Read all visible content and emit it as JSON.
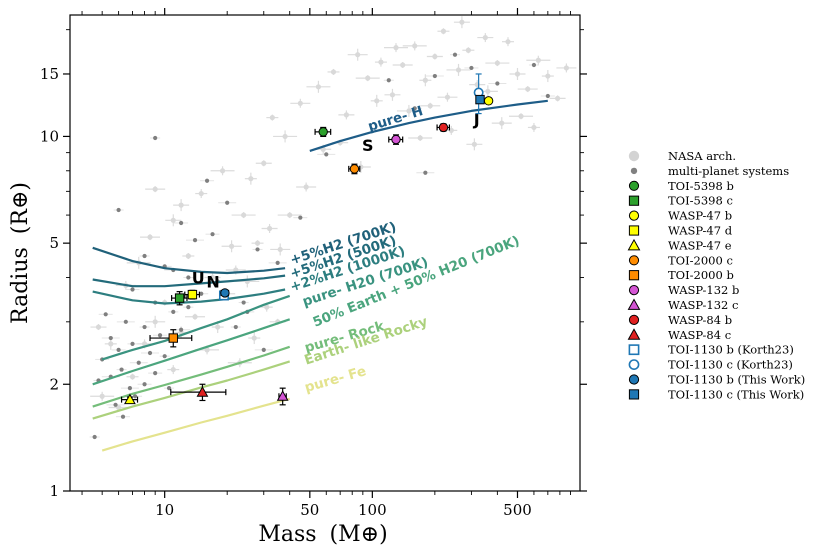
{
  "chart_data": {
    "type": "scatter",
    "xlabel": "Mass",
    "xlabel_unit": "(M⊕)",
    "ylabel": "Radius",
    "ylabel_unit": "(R⊕)",
    "xscale": "log",
    "yscale": "log",
    "xlim": [
      3.5,
      1000
    ],
    "ylim": [
      1,
      22
    ],
    "x_ticks": [
      {
        "value": 10,
        "label": "10"
      },
      {
        "value": 50,
        "label": "50"
      },
      {
        "value": 100,
        "label": "100"
      },
      {
        "value": 500,
        "label": "500"
      }
    ],
    "y_ticks": [
      {
        "value": 1,
        "label": "1"
      },
      {
        "value": 2,
        "label": "2"
      },
      {
        "value": 5,
        "label": "5"
      },
      {
        "value": 10,
        "label": "10"
      },
      {
        "value": 15,
        "label": "15"
      }
    ],
    "solar_system": [
      {
        "label": "U",
        "mass": 14.5,
        "radius": 4.0
      },
      {
        "label": "N",
        "mass": 17.1,
        "radius": 3.9
      },
      {
        "label": "S",
        "mass": 95,
        "radius": 9.45
      },
      {
        "label": "J",
        "mass": 318,
        "radius": 11.2
      }
    ],
    "composition_curves": [
      {
        "name": "+5%H2 (700K)",
        "color": "#20617a",
        "points": [
          [
            4.5,
            4.85
          ],
          [
            7,
            4.45
          ],
          [
            10,
            4.25
          ],
          [
            15,
            4.15
          ],
          [
            20,
            4.12
          ],
          [
            30,
            4.18
          ],
          [
            38,
            4.25
          ]
        ]
      },
      {
        "name": "+5%H2 (500K)",
        "color": "#236b7b",
        "points": [
          [
            4.5,
            3.95
          ],
          [
            7,
            3.78
          ],
          [
            10,
            3.78
          ],
          [
            15,
            3.85
          ],
          [
            20,
            3.9
          ],
          [
            30,
            3.98
          ],
          [
            38,
            4.05
          ]
        ]
      },
      {
        "name": "+2%H2 (1000K)",
        "color": "#2d7e80",
        "points": [
          [
            4.5,
            3.65
          ],
          [
            7,
            3.45
          ],
          [
            10,
            3.38
          ],
          [
            15,
            3.42
          ],
          [
            20,
            3.48
          ],
          [
            30,
            3.6
          ],
          [
            38,
            3.7
          ]
        ]
      },
      {
        "name": "pure- H20 (700K)",
        "color": "#3a9380",
        "points": [
          [
            5,
            2.35
          ],
          [
            7,
            2.5
          ],
          [
            10,
            2.65
          ],
          [
            15,
            2.88
          ],
          [
            20,
            3.05
          ],
          [
            30,
            3.35
          ],
          [
            40,
            3.55
          ]
        ]
      },
      {
        "name": "50% Earth + 50% H20 (700K)",
        "color": "#4ba57e",
        "points": [
          [
            4.5,
            2.0
          ],
          [
            7,
            2.18
          ],
          [
            10,
            2.33
          ],
          [
            15,
            2.52
          ],
          [
            20,
            2.66
          ],
          [
            30,
            2.88
          ],
          [
            40,
            3.05
          ]
        ]
      },
      {
        "name": "pure- Rock",
        "color": "#74bd7a",
        "points": [
          [
            4.5,
            1.73
          ],
          [
            7,
            1.88
          ],
          [
            10,
            1.99
          ],
          [
            15,
            2.13
          ],
          [
            20,
            2.24
          ],
          [
            30,
            2.41
          ],
          [
            40,
            2.55
          ]
        ]
      },
      {
        "name": "Earth- like Rocky",
        "color": "#acd17c",
        "points": [
          [
            4.5,
            1.6
          ],
          [
            7,
            1.73
          ],
          [
            10,
            1.83
          ],
          [
            15,
            1.96
          ],
          [
            20,
            2.05
          ],
          [
            30,
            2.2
          ],
          [
            40,
            2.32
          ]
        ]
      },
      {
        "name": "pure- Fe",
        "color": "#e4e38e",
        "points": [
          [
            5,
            1.3
          ],
          [
            7,
            1.38
          ],
          [
            10,
            1.46
          ],
          [
            15,
            1.56
          ],
          [
            20,
            1.63
          ],
          [
            30,
            1.74
          ],
          [
            40,
            1.82
          ]
        ]
      },
      {
        "name": "pure- H",
        "color": "#1e5d88",
        "points": [
          [
            50,
            9.1
          ],
          [
            70,
            9.7
          ],
          [
            100,
            10.3
          ],
          [
            150,
            10.9
          ],
          [
            200,
            11.3
          ],
          [
            300,
            11.8
          ],
          [
            500,
            12.3
          ],
          [
            700,
            12.6
          ]
        ]
      }
    ],
    "highlighted_planets": [
      {
        "name": "TOI-5398 b",
        "mass": 58,
        "radius": 10.3,
        "mass_err": 5,
        "radius_err": 0.3,
        "marker": "circle",
        "color": "#2ca02c",
        "filled": true
      },
      {
        "name": "TOI-5398 c",
        "mass": 11.8,
        "radius": 3.5,
        "mass_err": 1.0,
        "radius_err": 0.15,
        "marker": "square",
        "color": "#2ca02c",
        "filled": true
      },
      {
        "name": "WASP-47 b",
        "mass": 363,
        "radius": 12.6,
        "mass_err": 8,
        "radius_err": 0.2,
        "marker": "circle",
        "color": "#ffff00",
        "filled": true
      },
      {
        "name": "WASP-47 d",
        "mass": 13.6,
        "radius": 3.58,
        "mass_err": 1.1,
        "radius_err": 0.1,
        "marker": "square",
        "color": "#ffff00",
        "filled": true
      },
      {
        "name": "WASP-47 e",
        "mass": 6.8,
        "radius": 1.81,
        "mass_err": 0.6,
        "radius_err": 0.03,
        "marker": "triangle",
        "color": "#ffff00",
        "filled": true
      },
      {
        "name": "TOI-2000 c",
        "mass": 82,
        "radius": 8.1,
        "mass_err": 5,
        "radius_err": 0.25,
        "marker": "circle",
        "color": "#ff8c00",
        "filled": true
      },
      {
        "name": "TOI-2000 b",
        "mass": 11,
        "radius": 2.7,
        "mass_err": 2.5,
        "radius_err": 0.15,
        "marker": "square",
        "color": "#ff8c00",
        "filled": true
      },
      {
        "name": "WASP-132 b",
        "mass": 130,
        "radius": 9.8,
        "mass_err": 10,
        "radius_err": 0.3,
        "marker": "circle",
        "color": "#d455d4",
        "filled": true
      },
      {
        "name": "WASP-132 c",
        "mass": 37,
        "radius": 1.85,
        "mass_err": 1.5,
        "radius_err": 0.1,
        "marker": "triangle",
        "color": "#d455d4",
        "filled": true
      },
      {
        "name": "WASP-84 b",
        "mass": 220,
        "radius": 10.6,
        "mass_err": 15,
        "radius_err": 0.25,
        "marker": "circle",
        "color": "#e02020",
        "filled": true
      },
      {
        "name": "WASP-84 c",
        "mass": 15.2,
        "radius": 1.9,
        "mass_err": 4.5,
        "radius_err": 0.1,
        "marker": "triangle",
        "color": "#e02020",
        "filled": true
      },
      {
        "name": "TOI-1130 b (Korth23)",
        "mass": 19.3,
        "radius": 3.56,
        "mass_err": 0.8,
        "radius_err": 0.07,
        "marker": "square",
        "color": "#1f77b4",
        "filled": false
      },
      {
        "name": "TOI-1130 c (Korth23)",
        "mass": 325,
        "radius": 13.3,
        "mass_err": 5,
        "radius_err": 1.7,
        "marker": "circle",
        "color": "#1f77b4",
        "filled": false
      },
      {
        "name": "TOI-1130 b (This Work)",
        "mass": 19.5,
        "radius": 3.62,
        "mass_err": 0.8,
        "radius_err": 0.06,
        "marker": "circle",
        "color": "#1f77b4",
        "filled": true
      },
      {
        "name": "TOI-1130 c (This Work)",
        "mass": 330,
        "radius": 12.7,
        "mass_err": 5,
        "radius_err": 0.3,
        "marker": "square",
        "color": "#1f77b4",
        "filled": true
      }
    ],
    "multi_planet_points": [
      [
        9,
        9.9
      ],
      [
        16,
        7.5
      ],
      [
        20,
        6.5
      ],
      [
        6,
        6.2
      ],
      [
        12,
        5.7
      ],
      [
        14,
        5.1
      ],
      [
        8,
        4.6
      ],
      [
        10,
        4.3
      ],
      [
        11,
        4.2
      ],
      [
        13,
        4.0
      ],
      [
        7,
        3.7
      ],
      [
        9,
        3.4
      ],
      [
        11,
        3.2
      ],
      [
        5.2,
        3.15
      ],
      [
        6.5,
        3.0
      ],
      [
        8,
        2.9
      ],
      [
        9.5,
        2.75
      ],
      [
        5.5,
        2.7
      ],
      [
        7,
        2.6
      ],
      [
        6,
        2.5
      ],
      [
        8.5,
        2.45
      ],
      [
        10,
        2.4
      ],
      [
        5,
        2.35
      ],
      [
        7.5,
        2.3
      ],
      [
        6.2,
        2.2
      ],
      [
        9,
        2.15
      ],
      [
        5.5,
        2.1
      ],
      [
        4.8,
        2.05
      ],
      [
        8,
        2.0
      ],
      [
        6.8,
        1.95
      ],
      [
        10.5,
        1.95
      ],
      [
        7.2,
        1.85
      ],
      [
        5.8,
        1.75
      ],
      [
        4.6,
        1.42
      ],
      [
        6.3,
        1.62
      ],
      [
        12,
        2.85
      ],
      [
        13,
        3.3
      ],
      [
        15,
        3.6
      ],
      [
        18,
        3.9
      ],
      [
        22,
        2.9
      ],
      [
        25,
        3.2
      ],
      [
        30,
        2.5
      ],
      [
        28,
        4.8
      ],
      [
        45,
        5.9
      ],
      [
        60,
        8.9
      ],
      [
        120,
        14.4
      ],
      [
        160,
        12.0
      ],
      [
        200,
        14.8
      ],
      [
        250,
        17.0
      ],
      [
        300,
        15.6
      ],
      [
        400,
        14.1
      ],
      [
        600,
        15.9
      ],
      [
        700,
        13.0
      ],
      [
        180,
        7.9
      ],
      [
        24,
        3.4
      ],
      [
        17,
        5.3
      ],
      [
        35,
        4.4
      ]
    ],
    "nasa_archive_points": [
      [
        7,
        2.1
      ],
      [
        8,
        2.6
      ],
      [
        9,
        3.0
      ],
      [
        10,
        3.4
      ],
      [
        11,
        2.2
      ],
      [
        12,
        2.8
      ],
      [
        14,
        3.1
      ],
      [
        16,
        2.5
      ],
      [
        18,
        2.9
      ],
      [
        20,
        3.6
      ],
      [
        22,
        4.2
      ],
      [
        25,
        3.9
      ],
      [
        28,
        5.0
      ],
      [
        32,
        5.5
      ],
      [
        36,
        4.8
      ],
      [
        40,
        6.0
      ],
      [
        15,
        6.9
      ],
      [
        12,
        6.4
      ],
      [
        9,
        7.1
      ],
      [
        19,
        8.0
      ],
      [
        26,
        7.6
      ],
      [
        30,
        8.4
      ],
      [
        45,
        12.4
      ],
      [
        55,
        13.8
      ],
      [
        65,
        15.2
      ],
      [
        75,
        11.5
      ],
      [
        85,
        17.0
      ],
      [
        95,
        14.6
      ],
      [
        110,
        16.2
      ],
      [
        125,
        13.1
      ],
      [
        140,
        15.9
      ],
      [
        160,
        18.0
      ],
      [
        180,
        14.4
      ],
      [
        200,
        16.8
      ],
      [
        230,
        12.9
      ],
      [
        260,
        15.4
      ],
      [
        290,
        17.5
      ],
      [
        320,
        14.0
      ],
      [
        360,
        13.4
      ],
      [
        400,
        16.1
      ],
      [
        450,
        18.5
      ],
      [
        500,
        15.0
      ],
      [
        560,
        13.6
      ],
      [
        630,
        16.4
      ],
      [
        700,
        14.8
      ],
      [
        780,
        12.8
      ],
      [
        860,
        15.6
      ],
      [
        150,
        11.8
      ],
      [
        220,
        19.8
      ],
      [
        350,
        19.0
      ],
      [
        420,
        10.9
      ],
      [
        520,
        11.4
      ],
      [
        600,
        10.6
      ],
      [
        270,
        21.0
      ],
      [
        190,
        12.2
      ],
      [
        130,
        17.8
      ],
      [
        105,
        12.6
      ],
      [
        70,
        9.6
      ],
      [
        48,
        7.2
      ],
      [
        38,
        10.0
      ],
      [
        33,
        11.3
      ],
      [
        58,
        9.2
      ],
      [
        88,
        8.2
      ],
      [
        170,
        9.9
      ],
      [
        240,
        10.4
      ],
      [
        310,
        9.5
      ],
      [
        6,
        1.72
      ],
      [
        5,
        1.85
      ],
      [
        5.5,
        2.6
      ],
      [
        4.8,
        2.9
      ],
      [
        6.5,
        3.8
      ],
      [
        7.5,
        4.4
      ],
      [
        13,
        4.6
      ],
      [
        17,
        4.0
      ],
      [
        21,
        4.9
      ],
      [
        24,
        6.0
      ],
      [
        31,
        3.3
      ],
      [
        11,
        5.8
      ],
      [
        8.5,
        5.2
      ],
      [
        23,
        2.3
      ],
      [
        27,
        2.7
      ],
      [
        35,
        3.0
      ]
    ],
    "legend": [
      {
        "label": "NASA arch.",
        "marker": "circle",
        "color": "#d3d3d3",
        "filled": true,
        "small": false
      },
      {
        "label": "multi-planet systems",
        "marker": "circle",
        "color": "#808080",
        "filled": true,
        "small": true
      },
      {
        "label": "TOI-5398 b",
        "marker": "circle",
        "color": "#2ca02c",
        "filled": true,
        "small": false
      },
      {
        "label": "TOI-5398 c",
        "marker": "square",
        "color": "#2ca02c",
        "filled": true,
        "small": false
      },
      {
        "label": "WASP-47 b",
        "marker": "circle",
        "color": "#ffff00",
        "filled": true,
        "small": false
      },
      {
        "label": "WASP-47 d",
        "marker": "square",
        "color": "#ffff00",
        "filled": true,
        "small": false
      },
      {
        "label": "WASP-47 e",
        "marker": "triangle",
        "color": "#ffff00",
        "filled": true,
        "small": false
      },
      {
        "label": "TOI-2000 c",
        "marker": "circle",
        "color": "#ff8c00",
        "filled": true,
        "small": false
      },
      {
        "label": "TOI-2000 b",
        "marker": "square",
        "color": "#ff8c00",
        "filled": true,
        "small": false
      },
      {
        "label": "WASP-132 b",
        "marker": "circle",
        "color": "#d455d4",
        "filled": true,
        "small": false
      },
      {
        "label": "WASP-132 c",
        "marker": "triangle",
        "color": "#d455d4",
        "filled": true,
        "small": false
      },
      {
        "label": "WASP-84 b",
        "marker": "circle",
        "color": "#e02020",
        "filled": true,
        "small": false
      },
      {
        "label": "WASP-84 c",
        "marker": "triangle",
        "color": "#e02020",
        "filled": true,
        "small": false
      },
      {
        "label": "TOI-1130 b (Korth23)",
        "marker": "square",
        "color": "#1f77b4",
        "filled": false,
        "small": false
      },
      {
        "label": "TOI-1130 c (Korth23)",
        "marker": "circle",
        "color": "#1f77b4",
        "filled": false,
        "small": false
      },
      {
        "label": "TOI-1130 b (This Work)",
        "marker": "circle",
        "color": "#1f77b4",
        "filled": true,
        "small": false
      },
      {
        "label": "TOI-1130 c (This Work)",
        "marker": "square",
        "color": "#1f77b4",
        "filled": true,
        "small": false
      }
    ]
  }
}
